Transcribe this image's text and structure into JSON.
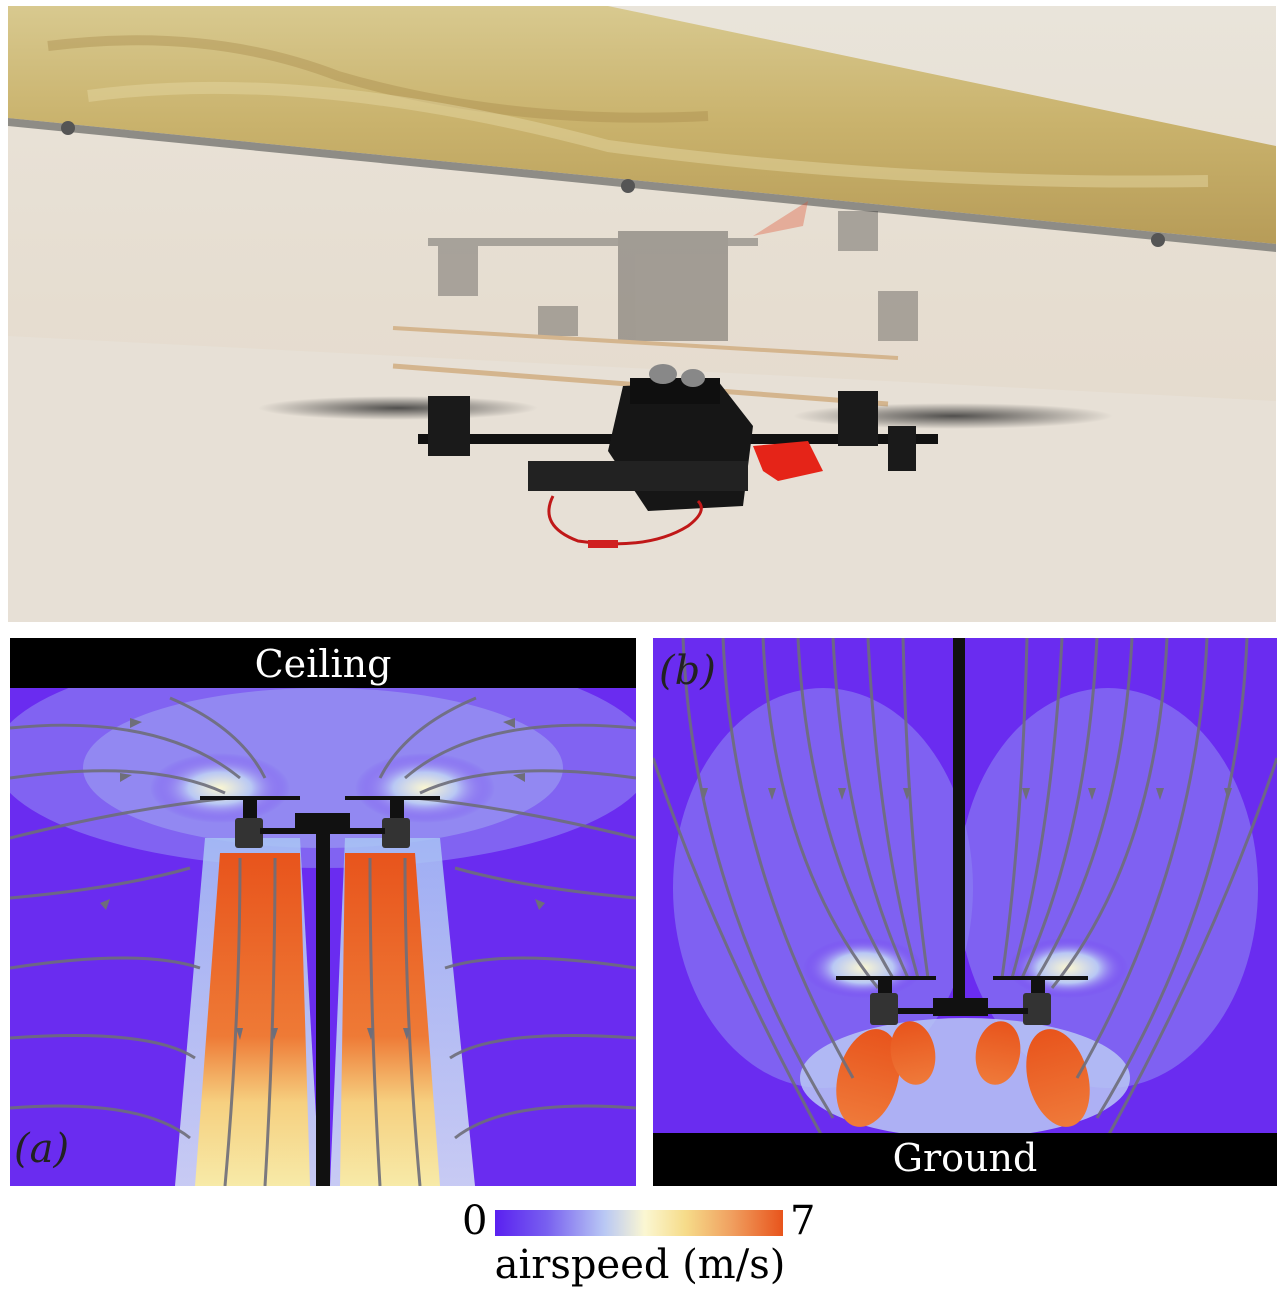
{
  "panels": {
    "a": {
      "tag": "(a)",
      "boundary_label": "Ceiling"
    },
    "b": {
      "tag": "(b)",
      "boundary_label": "Ground"
    }
  },
  "colorbar": {
    "min_label": "0",
    "max_label": "7",
    "quantity_label": "airspeed (m/s)",
    "colors": [
      "#5a20f0",
      "#b9c8f4",
      "#fbf7d2",
      "#f0a060",
      "#e8541c"
    ]
  },
  "photo": {
    "subject": "quadrotor-hovering-under-ceiling"
  }
}
